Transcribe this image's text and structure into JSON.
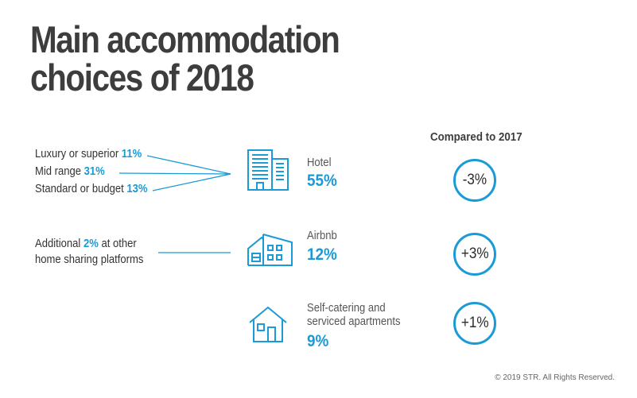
{
  "title_lines": [
    "Main accommodation",
    "choices of 2018"
  ],
  "compared_header": "Compared to 2017",
  "hotel_breakdown": [
    {
      "label": "Luxury or superior",
      "value": "11%"
    },
    {
      "label": "Mid range",
      "value": "31%"
    },
    {
      "label": "Standard or budget",
      "value": "13%"
    }
  ],
  "airbnb_note": {
    "line1_prefix": "Additional",
    "line1_value": "2%",
    "line1_suffix": "at other",
    "line2": "home sharing platforms"
  },
  "icons": [
    "hotel-building-icon",
    "airbnb-house-icon",
    "self-catering-house-icon"
  ],
  "accent_color": "#1a9ad6",
  "chart_data": {
    "type": "table",
    "title": "Main accommodation choices of 2018",
    "categories": [
      "Hotel",
      "Airbnb",
      "Self-catering and serviced apartments"
    ],
    "label_lines": [
      [
        "Hotel"
      ],
      [
        "Airbnb"
      ],
      [
        "Self-catering and",
        "serviced apartments"
      ]
    ],
    "values": [
      55,
      12,
      9
    ],
    "value_labels": [
      "55%",
      "12%",
      "9%"
    ],
    "change_vs_2017": [
      "-3%",
      "+3%",
      "+1%"
    ],
    "hotel_segments": [
      {
        "name": "Luxury or superior",
        "value": 11
      },
      {
        "name": "Mid range",
        "value": 31
      },
      {
        "name": "Standard or budget",
        "value": 13
      }
    ]
  },
  "footer": "© 2019 STR. All Rights Reserved."
}
